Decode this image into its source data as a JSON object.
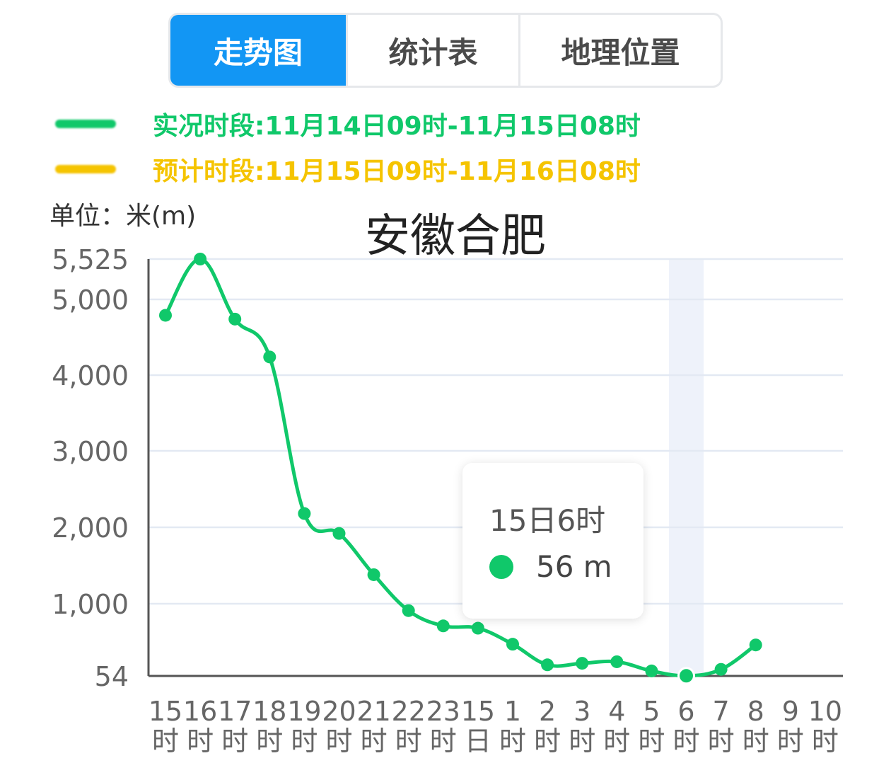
{
  "tabs": [
    {
      "label": "走势图",
      "active": true
    },
    {
      "label": "统计表",
      "active": false
    },
    {
      "label": "地理位置",
      "active": false
    }
  ],
  "legend": {
    "observed": {
      "label": "实况时段:11月14日09时-11月15日08时",
      "color": "#10c86a"
    },
    "forecast": {
      "label": "预计时段:11月15日09时-11月16日08时",
      "color": "#f5c400"
    }
  },
  "unit_label": "单位：米(m)",
  "chart_data": {
    "type": "line",
    "title": "安徽合肥",
    "ylabel": "米(m)",
    "y_ticks": [
      54,
      1000,
      2000,
      3000,
      4000,
      5000,
      5525
    ],
    "y_tick_labels": [
      "54",
      "1,000",
      "2,000",
      "3,000",
      "4,000",
      "5,000",
      "5,525"
    ],
    "ylim": [
      54,
      5525
    ],
    "x_ticks": [
      {
        "num": "15",
        "unit": "时"
      },
      {
        "num": "16",
        "unit": "时"
      },
      {
        "num": "17",
        "unit": "时"
      },
      {
        "num": "18",
        "unit": "时"
      },
      {
        "num": "19",
        "unit": "时"
      },
      {
        "num": "20",
        "unit": "时"
      },
      {
        "num": "21",
        "unit": "时"
      },
      {
        "num": "22",
        "unit": "时"
      },
      {
        "num": "23",
        "unit": "时"
      },
      {
        "num": "15",
        "unit": "日"
      },
      {
        "num": "1",
        "unit": "时"
      },
      {
        "num": "2",
        "unit": "时"
      },
      {
        "num": "3",
        "unit": "时"
      },
      {
        "num": "4",
        "unit": "时"
      },
      {
        "num": "5",
        "unit": "时"
      },
      {
        "num": "6",
        "unit": "时"
      },
      {
        "num": "7",
        "unit": "时"
      },
      {
        "num": "8",
        "unit": "时"
      },
      {
        "num": "9",
        "unit": "时"
      },
      {
        "num": "10",
        "unit": "时"
      }
    ],
    "series": [
      {
        "color": "#10c86a",
        "values": [
          4790,
          5525,
          4740,
          4240,
          2180,
          1920,
          1380,
          910,
          710,
          680,
          470,
          200,
          220,
          240,
          120,
          56,
          140,
          460
        ]
      }
    ],
    "highlight_index": 15,
    "grid": true,
    "legend_position": "top-left"
  },
  "tooltip": {
    "title": "15日6时",
    "value": "56 m",
    "color": "#10c86a"
  },
  "colors": {
    "accent": "#1296f4",
    "observed": "#10c86a",
    "forecast": "#f5c400",
    "grid": "#e3e9f3"
  }
}
